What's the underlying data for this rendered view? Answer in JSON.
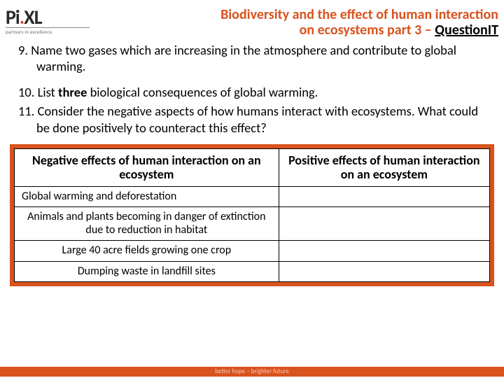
{
  "logo": {
    "brand_pre": "Pi",
    "brand_dot": ".",
    "brand_post": "XL",
    "tagline": "partners in excellence"
  },
  "title": {
    "line1": "Biodiversity and the effect of human interaction",
    "line2_pre": "on ecosystems part 3 – ",
    "line2_suffix": "QuestionIT"
  },
  "questions": {
    "q9": "9. Name two gases which are increasing in the atmosphere and contribute to global warming.",
    "q10_pre": "10. List ",
    "q10_bold": "three",
    "q10_post": " biological consequences of global warming.",
    "q11": "11. Consider the negative aspects of how humans interact with ecosystems. What could be done positively to counteract this effect?"
  },
  "table": {
    "colors": {
      "accent": "#d9531e",
      "cell_bg": "#ffffff",
      "border": "#000000"
    },
    "headers": {
      "left": "Negative effects of human interaction on an ecosystem",
      "right": "Positive effects of human interaction on an ecosystem"
    },
    "rows": [
      {
        "left": "Global warming and deforestation",
        "right": ""
      },
      {
        "left": "Animals and plants becoming in danger of extinction due to reduction in habitat",
        "right": ""
      },
      {
        "left": "Large 40 acre fields growing one crop",
        "right": ""
      },
      {
        "left": "Dumping waste in landfill sites",
        "right": ""
      }
    ]
  },
  "footer": {
    "text": "better hope – brighter future"
  }
}
